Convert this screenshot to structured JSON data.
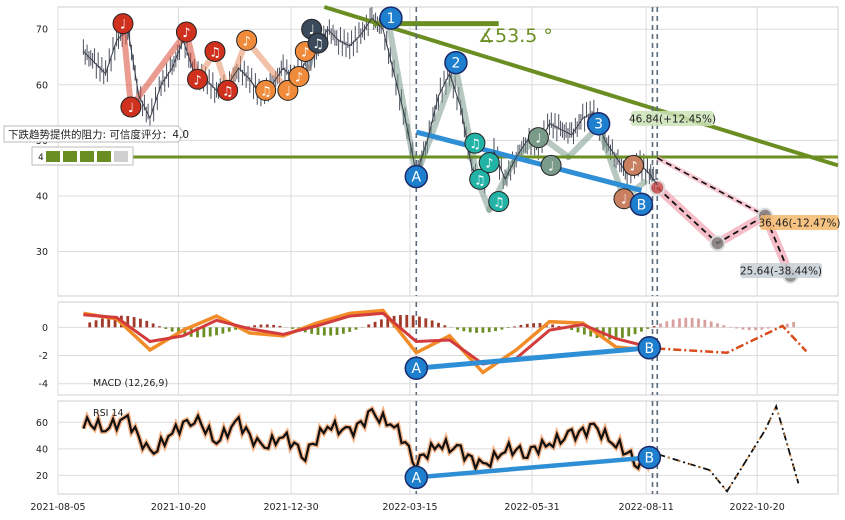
{
  "chart_data": [
    {
      "type": "line",
      "panel": "price",
      "ylim": [
        22,
        74
      ],
      "yticks": [
        30,
        40,
        50,
        60,
        70
      ],
      "grid": true,
      "series": [
        {
          "name": "",
          "x": [
            "2021-08-21",
            "2021-08-28",
            "2021-09-04",
            "2021-09-11",
            "2021-09-18",
            "2021-09-25",
            "2021-10-02",
            "2021-10-09",
            "2021-10-16",
            "2021-10-23",
            "2021-10-30",
            "2021-11-06",
            "2021-11-13",
            "2021-11-20",
            "2021-11-27",
            "2021-12-04",
            "2021-12-11",
            "2021-12-18",
            "2021-12-25",
            "2022-01-01",
            "2022-01-08",
            "2022-01-15",
            "2022-01-22",
            "2022-01-29",
            "2022-02-05",
            "2022-02-12",
            "2022-02-19",
            "2022-02-26",
            "2022-03-05",
            "2022-03-12",
            "2022-03-19",
            "2022-03-26",
            "2022-04-02",
            "2022-04-09",
            "2022-04-16",
            "2022-04-23",
            "2022-04-30",
            "2022-05-07",
            "2022-05-14",
            "2022-05-21",
            "2022-05-28",
            "2022-06-04",
            "2022-06-11",
            "2022-06-18",
            "2022-06-25",
            "2022-07-02",
            "2022-07-09",
            "2022-07-16",
            "2022-07-23",
            "2022-07-30",
            "2022-08-06",
            "2022-08-13",
            "2022-08-18"
          ],
          "values": [
            66,
            64,
            62,
            68,
            70,
            58,
            54,
            60,
            63,
            68,
            62,
            61,
            59,
            60,
            63,
            61,
            58,
            60,
            63,
            61,
            64,
            66,
            70,
            68,
            67,
            69,
            72,
            70,
            62,
            54,
            44,
            50,
            58,
            62,
            56,
            45,
            42,
            48,
            43,
            47,
            50,
            49,
            53,
            52,
            51,
            54,
            55,
            50,
            47,
            44,
            46,
            44,
            42
          ]
        }
      ],
      "annotations": [
        {
          "text": "∡53.5 °"
        },
        {
          "text": "46.84(+12.45%)"
        },
        {
          "text": "36.46(-12.47%)"
        },
        {
          "text": "25.64(-38.44%)"
        },
        {
          "text": "下跌趋势提供的阻力: 可信度评分：4.0"
        },
        {
          "text": "4"
        }
      ],
      "wave_labels": [
        "1",
        "2",
        "3",
        "A",
        "B"
      ],
      "projection": [
        {
          "x": "2022-08-18",
          "y": 41.5
        },
        {
          "x": "2022-09-25",
          "y": 31.5
        },
        {
          "x": "2022-10-25",
          "y": 36.46
        },
        {
          "x": "2022-11-10",
          "y": 25.64
        }
      ],
      "resistance_level": 47.0
    },
    {
      "type": "line",
      "panel": "macd",
      "title": "MACD (12,26,9)",
      "ylim": [
        -4.8,
        1.8
      ],
      "yticks": [
        -4,
        -2,
        0
      ],
      "series": [
        {
          "name": "",
          "x": [
            "2021-08-21",
            "2021-09-11",
            "2021-10-02",
            "2021-10-23",
            "2021-11-13",
            "2021-12-04",
            "2021-12-25",
            "2022-01-15",
            "2022-02-05",
            "2022-02-26",
            "2022-03-19",
            "2022-04-09",
            "2022-04-30",
            "2022-05-21",
            "2022-06-11",
            "2022-07-02",
            "2022-07-23",
            "2022-08-13"
          ],
          "values": [
            1.0,
            0.6,
            -1.6,
            -0.2,
            0.8,
            -0.4,
            -0.6,
            0.3,
            1.0,
            1.2,
            -1.8,
            -0.6,
            -3.2,
            -1.6,
            0.4,
            0.3,
            -1.4,
            -1.6
          ]
        },
        {
          "name": "",
          "x": [
            "2021-08-21",
            "2021-09-11",
            "2021-10-02",
            "2021-10-23",
            "2021-11-13",
            "2021-12-04",
            "2021-12-25",
            "2022-01-15",
            "2022-02-05",
            "2022-02-26",
            "2022-03-19",
            "2022-04-09",
            "2022-04-30",
            "2022-05-21",
            "2022-06-11",
            "2022-07-02",
            "2022-07-23",
            "2022-08-13"
          ],
          "values": [
            0.9,
            0.7,
            -1.0,
            -0.6,
            0.5,
            -0.1,
            -0.5,
            0.1,
            0.8,
            1.0,
            -1.0,
            -0.9,
            -2.6,
            -2.2,
            -0.2,
            0.2,
            -0.8,
            -1.4
          ]
        }
      ],
      "divergence_labels": [
        "A",
        "B"
      ]
    },
    {
      "type": "line",
      "panel": "rsi",
      "title": "RSI 14",
      "ylim": [
        6,
        76
      ],
      "yticks": [
        20,
        40,
        60
      ],
      "series": [
        {
          "name": "",
          "x": [
            "2021-08-21",
            "2021-09-04",
            "2021-09-18",
            "2021-10-02",
            "2021-10-16",
            "2021-10-30",
            "2021-11-13",
            "2021-11-27",
            "2021-12-11",
            "2021-12-25",
            "2022-01-08",
            "2022-01-22",
            "2022-02-05",
            "2022-02-19",
            "2022-03-05",
            "2022-03-19",
            "2022-04-02",
            "2022-04-16",
            "2022-04-30",
            "2022-05-14",
            "2022-05-28",
            "2022-06-11",
            "2022-06-25",
            "2022-07-09",
            "2022-07-23",
            "2022-08-06",
            "2022-08-18"
          ],
          "values": [
            60,
            56,
            62,
            35,
            52,
            64,
            46,
            60,
            40,
            50,
            36,
            58,
            52,
            66,
            58,
            30,
            44,
            38,
            26,
            40,
            38,
            44,
            50,
            56,
            44,
            30,
            36
          ]
        }
      ],
      "divergence_labels": [
        "A",
        "B"
      ],
      "projection_values": [
        36,
        24,
        8,
        54,
        72,
        14
      ]
    },
    {
      "type": "line",
      "panel": "x-axis",
      "x_ticks": [
        "2021-08-05",
        "2021-10-20",
        "2021-12-30",
        "2022-03-15",
        "2022-05-31",
        "2022-08-11",
        "2022-10-20"
      ]
    }
  ]
}
